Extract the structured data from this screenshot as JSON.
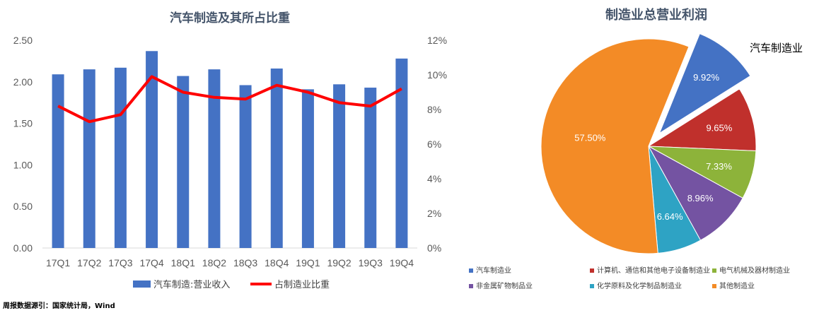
{
  "chart_data": [
    {
      "type": "bar",
      "title": "汽车制造及其所占比重",
      "categories": [
        "17Q1",
        "17Q2",
        "17Q3",
        "17Q4",
        "18Q1",
        "18Q2",
        "18Q3",
        "18Q4",
        "19Q1",
        "19Q2",
        "19Q3",
        "19Q4"
      ],
      "series": [
        {
          "name": "汽车制造:营业收入",
          "type": "bar",
          "axis": "left",
          "color": "#4472C4",
          "values": [
            2.09,
            2.15,
            2.17,
            2.37,
            2.07,
            2.15,
            1.96,
            2.16,
            1.91,
            1.97,
            1.93,
            2.28
          ]
        },
        {
          "name": "占制造业比重",
          "type": "line",
          "axis": "right",
          "color": "#FF0000",
          "values": [
            8.2,
            7.3,
            7.7,
            9.9,
            9.0,
            8.7,
            8.6,
            9.4,
            9.0,
            8.4,
            8.2,
            9.2
          ]
        }
      ],
      "ylim": [
        0,
        2.5
      ],
      "yticks": [
        "0.00",
        "0.50",
        "1.00",
        "1.50",
        "2.00",
        "2.50"
      ],
      "y2lim": [
        0,
        12
      ],
      "y2ticks": [
        "0%",
        "2%",
        "4%",
        "6%",
        "8%",
        "10%",
        "12%"
      ],
      "grid": false,
      "legend": "bottom"
    },
    {
      "type": "pie",
      "title": "制造业总营业利润",
      "callout": "汽车制造业",
      "slices": [
        {
          "name": "汽车制造业",
          "value": 9.92,
          "label": "9.92%",
          "color": "#4472C4",
          "exploded": true
        },
        {
          "name": "计算机、通信和其他电子设备制造业",
          "value": 9.65,
          "label": "9.65%",
          "color": "#C0302C"
        },
        {
          "name": "电气机械及器材制造业",
          "value": 7.33,
          "label": "7.33%",
          "color": "#8DB33A"
        },
        {
          "name": "非金属矿物制品业",
          "value": 8.96,
          "label": "8.96%",
          "color": "#7453A2"
        },
        {
          "name": "化学原料及化学制品制造业",
          "value": 6.64,
          "label": "6.64%",
          "color": "#2EA3C4"
        },
        {
          "name": "其他制造业",
          "value": 57.5,
          "label": "57.50%",
          "color": "#F38B26"
        }
      ],
      "legend": "bottom"
    }
  ],
  "source": "周报数据源引：国家统计局，Wind"
}
